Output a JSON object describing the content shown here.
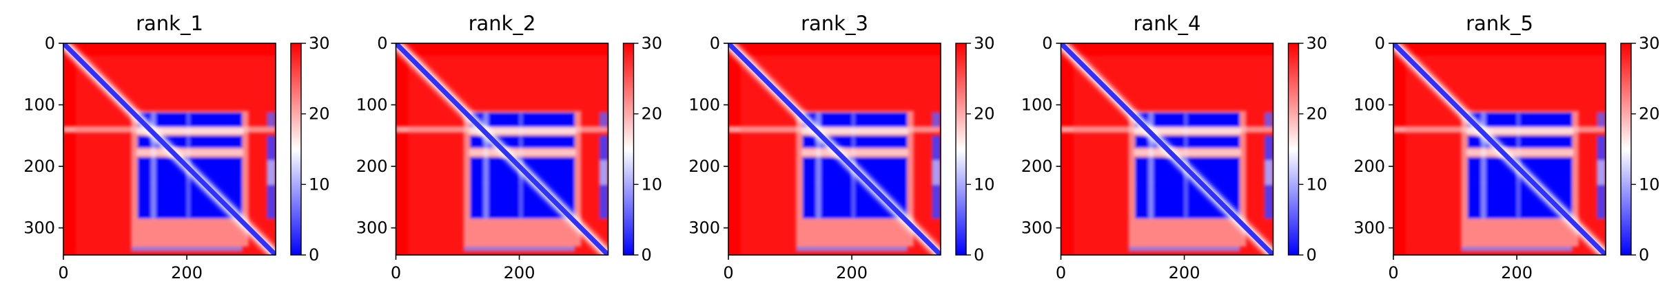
{
  "chart_data": [
    {
      "type": "heatmap",
      "title": "rank_1",
      "x_ticks": [
        "0",
        "200"
      ],
      "y_ticks": [
        "0",
        "100",
        "200",
        "300"
      ],
      "xlim": [
        0,
        344
      ],
      "ylim": [
        344,
        0
      ],
      "colorbar": {
        "min": 0,
        "max": 30,
        "ticks": [
          "0",
          "10",
          "20",
          "30"
        ],
        "colormap": "bwr"
      },
      "grid": false
    },
    {
      "type": "heatmap",
      "title": "rank_2",
      "x_ticks": [
        "0",
        "200"
      ],
      "y_ticks": [
        "0",
        "100",
        "200",
        "300"
      ],
      "xlim": [
        0,
        344
      ],
      "ylim": [
        344,
        0
      ],
      "colorbar": {
        "min": 0,
        "max": 30,
        "ticks": [
          "0",
          "10",
          "20",
          "30"
        ],
        "colormap": "bwr"
      },
      "grid": false
    },
    {
      "type": "heatmap",
      "title": "rank_3",
      "x_ticks": [
        "0",
        "200"
      ],
      "y_ticks": [
        "0",
        "100",
        "200",
        "300"
      ],
      "xlim": [
        0,
        344
      ],
      "ylim": [
        344,
        0
      ],
      "colorbar": {
        "min": 0,
        "max": 30,
        "ticks": [
          "0",
          "10",
          "20",
          "30"
        ],
        "colormap": "bwr"
      },
      "grid": false
    },
    {
      "type": "heatmap",
      "title": "rank_4",
      "x_ticks": [
        "0",
        "200"
      ],
      "y_ticks": [
        "0",
        "100",
        "200",
        "300"
      ],
      "xlim": [
        0,
        344
      ],
      "ylim": [
        344,
        0
      ],
      "colorbar": {
        "min": 0,
        "max": 30,
        "ticks": [
          "0",
          "10",
          "20",
          "30"
        ],
        "colormap": "bwr"
      },
      "grid": false
    },
    {
      "type": "heatmap",
      "title": "rank_5",
      "x_ticks": [
        "0",
        "200"
      ],
      "y_ticks": [
        "0",
        "100",
        "200",
        "300"
      ],
      "xlim": [
        0,
        344
      ],
      "ylim": [
        344,
        0
      ],
      "colorbar": {
        "min": 0,
        "max": 30,
        "ticks": [
          "0",
          "10",
          "20",
          "30"
        ],
        "colormap": "bwr"
      },
      "grid": false
    }
  ],
  "colors": {
    "low": "#0000ff",
    "mid": "#ffffff",
    "high": "#ff0000",
    "axis": "#000000"
  }
}
